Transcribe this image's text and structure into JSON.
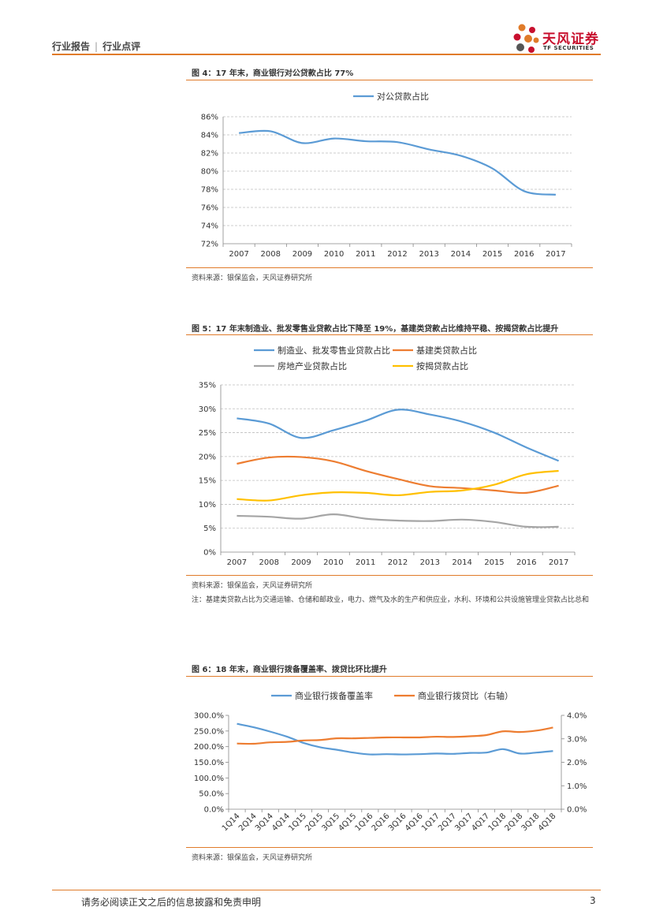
{
  "header": {
    "category": "行业报告",
    "type": "行业点评"
  },
  "logo": {
    "name_cn": "天风证券",
    "name_en": "TF SECURITIES",
    "colors": [
      "#c8102e",
      "#e07b2a",
      "#555555"
    ]
  },
  "figures": [
    {
      "title": "图 4：17 年末，商业银行对公贷款占比 77%",
      "source": "资料来源：银保监会，天风证券研究所"
    },
    {
      "title": "图 5：17 年末制造业、批发零售业贷款占比下降至 19%，基建类贷款占比维持平稳、按揭贷款占比提升",
      "source": "资料来源：银保监会，天风证券研究所",
      "note": "注：基建类贷款占比为交通运输、仓储和邮政业，电力、燃气及水的生产和供应业，水利、环境和公共设施管理业贷款占比总和"
    },
    {
      "title": "图 6：18 年末，商业银行拨备覆盖率、拨贷比环比提升",
      "source": "资料来源：银保监会，天风证券研究所"
    }
  ],
  "chart_data": [
    {
      "type": "line",
      "categories": [
        "2007",
        "2008",
        "2009",
        "2010",
        "2011",
        "2012",
        "2013",
        "2014",
        "2015",
        "2016",
        "2017"
      ],
      "series": [
        {
          "name": "对公贷款占比",
          "color": "#5b9bd5",
          "values": [
            84.2,
            84.4,
            83.1,
            83.6,
            83.3,
            83.2,
            82.4,
            81.7,
            80.3,
            77.8,
            77.4
          ]
        }
      ],
      "ylim": [
        72,
        86
      ],
      "yticks": [
        72,
        74,
        76,
        78,
        80,
        82,
        84,
        86
      ],
      "ytick_labels": [
        "72%",
        "74%",
        "76%",
        "78%",
        "80%",
        "82%",
        "84%",
        "86%"
      ],
      "legend": "top",
      "grid": true
    },
    {
      "type": "line",
      "categories": [
        "2007",
        "2008",
        "2009",
        "2010",
        "2011",
        "2012",
        "2013",
        "2014",
        "2015",
        "2016",
        "2017"
      ],
      "series": [
        {
          "name": "制造业、批发零售业贷款占比",
          "color": "#5b9bd5",
          "values": [
            28.0,
            26.9,
            23.9,
            25.5,
            27.5,
            29.8,
            28.8,
            27.3,
            25.0,
            21.9,
            19.1
          ]
        },
        {
          "name": "基建类贷款占比",
          "color": "#ed7d31",
          "values": [
            18.5,
            19.8,
            19.9,
            19.0,
            17.0,
            15.3,
            13.8,
            13.4,
            12.9,
            12.4,
            13.9
          ]
        },
        {
          "name": "房地产业贷款占比",
          "color": "#a5a5a5",
          "values": [
            7.6,
            7.4,
            7.0,
            7.9,
            7.0,
            6.6,
            6.5,
            6.8,
            6.3,
            5.3,
            5.3
          ]
        },
        {
          "name": "按揭贷款占比",
          "color": "#ffc000",
          "values": [
            11.1,
            10.8,
            11.9,
            12.5,
            12.4,
            11.9,
            12.6,
            12.9,
            14.1,
            16.3,
            17.0
          ]
        }
      ],
      "ylim": [
        0,
        35
      ],
      "yticks": [
        0,
        5,
        10,
        15,
        20,
        25,
        30,
        35
      ],
      "ytick_labels": [
        "0%",
        "5%",
        "10%",
        "15%",
        "20%",
        "25%",
        "30%",
        "35%"
      ],
      "legend": "top",
      "grid": true
    },
    {
      "type": "line",
      "categories": [
        "1Q14",
        "2Q14",
        "3Q14",
        "4Q14",
        "1Q15",
        "2Q15",
        "3Q15",
        "4Q15",
        "1Q16",
        "2Q16",
        "3Q16",
        "4Q16",
        "1Q17",
        "2Q17",
        "3Q17",
        "4Q17",
        "1Q18",
        "2Q18",
        "3Q18",
        "4Q18"
      ],
      "series": [
        {
          "name": "商业银行拨备覆盖率",
          "color": "#5b9bd5",
          "axis": "left",
          "values": [
            273.0,
            262.0,
            248.0,
            232.0,
            212.0,
            198.0,
            190.0,
            181.0,
            175.0,
            176.0,
            175.0,
            176.0,
            178.0,
            177.0,
            180.0,
            181.0,
            192.0,
            178.0,
            181.0,
            186.0
          ]
        },
        {
          "name": "商业银行拨贷比（右轴）",
          "color": "#ed7d31",
          "axis": "right",
          "values": [
            2.8,
            2.79,
            2.85,
            2.87,
            2.93,
            2.95,
            3.02,
            3.02,
            3.04,
            3.06,
            3.06,
            3.06,
            3.09,
            3.08,
            3.11,
            3.16,
            3.32,
            3.29,
            3.35,
            3.48
          ]
        }
      ],
      "ylim": [
        0,
        300
      ],
      "yticks_left": [
        "0.0%",
        "50.0%",
        "100.0%",
        "150.0%",
        "200.0%",
        "250.0%",
        "300.0%"
      ],
      "y2lim": [
        0,
        4
      ],
      "yticks_right": [
        "0.0%",
        "1.0%",
        "2.0%",
        "3.0%",
        "4.0%"
      ],
      "legend": "top",
      "grid": false
    }
  ],
  "footer": {
    "disclaimer": "请务必阅读正文之后的信息披露和免责申明",
    "page": "3"
  }
}
